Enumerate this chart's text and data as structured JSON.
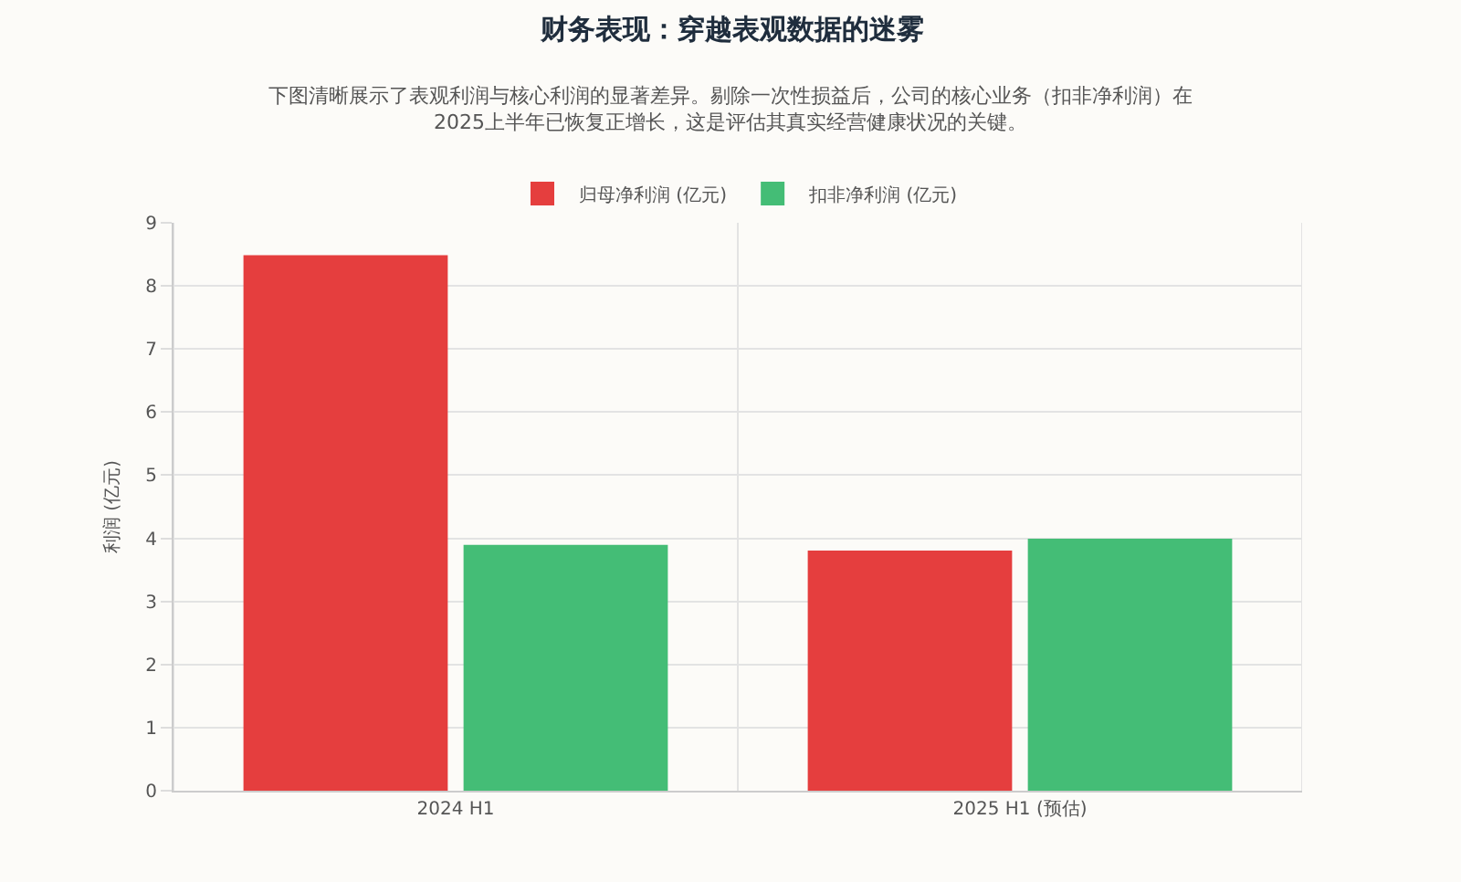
{
  "chart_data": {
    "type": "bar",
    "title": "财务表现：穿越表观数据的迷雾",
    "subtitle": "下图清晰展示了表观利润与核心利润的显著差异。剔除一次性损益后，公司的核心业务（扣非净利润）在\n2025上半年已恢复正增长，这是评估其真实经营健康状况的关键。",
    "ylabel": "利润 (亿元)",
    "categories": [
      "2024 H1",
      "2025 H1 (预估)"
    ],
    "series": [
      {
        "name": "归母净利润 (亿元)",
        "color": "#e53e3e",
        "values": [
          8.47,
          3.79
        ]
      },
      {
        "name": "扣非净利润 (亿元)",
        "color": "#44bd76",
        "values": [
          3.88,
          3.98
        ]
      }
    ],
    "ylim": [
      0,
      9
    ],
    "yticks": [
      0,
      1,
      2,
      3,
      4,
      5,
      6,
      7,
      8,
      9
    ],
    "grid": true,
    "legend": "top"
  }
}
